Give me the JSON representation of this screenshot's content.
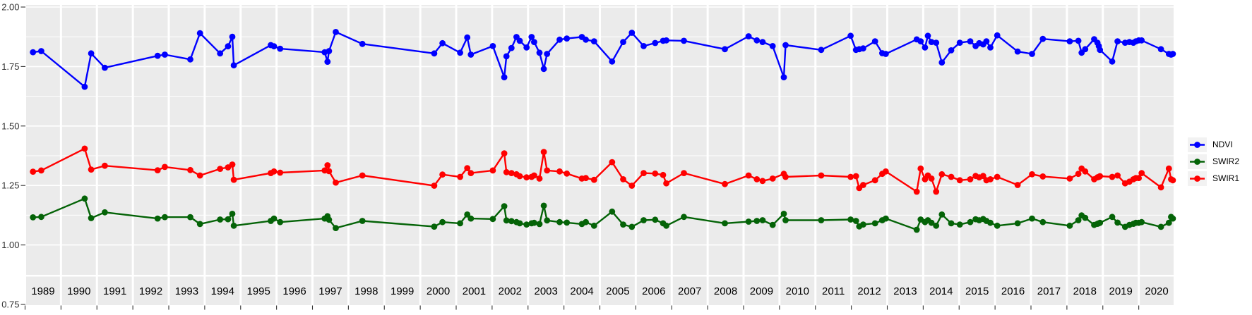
{
  "figure": {
    "panel_background": "#EBEBEB",
    "strip_background": "#EBEBEB",
    "gridline_color": "#FFFFFF",
    "axis_text_color": "#333333",
    "strip_text_color": "#000000",
    "tick_color": "#333333"
  },
  "chart_data": {
    "type": "line",
    "title": "",
    "xlabel": "",
    "ylabel": "",
    "grid": {
      "major_step": 0.25,
      "minor_step": 0.125,
      "gridlines_on": true
    },
    "y_axis": {
      "tick_labels": [
        "2.00",
        "1.75",
        "1.50",
        "1.25",
        "1.00",
        "0.75"
      ],
      "tick_values": [
        2.0,
        1.75,
        1.5,
        1.25,
        1.0,
        0.75
      ],
      "range": [
        0.875,
        2.01
      ]
    },
    "x_facet_years": [
      "1989",
      "1990",
      "1991",
      "1992",
      "1993",
      "1994",
      "1995",
      "1996",
      "1997",
      "1998",
      "1999",
      "2000",
      "2001",
      "2002",
      "2003",
      "2004",
      "2005",
      "2006",
      "2007",
      "2008",
      "2009",
      "2010",
      "2011",
      "2012",
      "2013",
      "2014",
      "2015",
      "2016",
      "2017",
      "2018",
      "2019",
      "2020"
    ],
    "legend": {
      "position": "right",
      "entries": [
        {
          "label": "NDVI",
          "color": "#0000FF"
        },
        {
          "label": "SWIR2",
          "color": "#046307"
        },
        {
          "label": "SWIR1",
          "color": "#FF0000"
        }
      ]
    },
    "x": [
      1989.19,
      1989.42,
      1990.63,
      1990.81,
      1991.19,
      1992.66,
      1992.86,
      1993.57,
      1993.84,
      1994.4,
      1994.62,
      1994.74,
      1994.78,
      1995.81,
      1995.9,
      1996.07,
      1997.31,
      1997.39,
      1997.43,
      1997.62,
      1998.36,
      2000.36,
      2000.59,
      2001.08,
      2001.28,
      2001.38,
      2001.99,
      2002.31,
      2002.37,
      2002.51,
      2002.65,
      2002.74,
      2002.93,
      2003.07,
      2003.14,
      2003.29,
      2003.41,
      2003.5,
      2003.85,
      2004.05,
      2004.47,
      2004.58,
      2004.81,
      2005.31,
      2005.62,
      2005.86,
      2006.19,
      2006.51,
      2006.73,
      2006.82,
      2007.31,
      2008.45,
      2009.11,
      2009.34,
      2009.5,
      2009.78,
      2010.09,
      2010.14,
      2011.13,
      2011.95,
      2012.1,
      2012.19,
      2012.3,
      2012.63,
      2012.83,
      2012.93,
      2013.79,
      2013.9,
      2014.02,
      2014.1,
      2014.2,
      2014.33,
      2014.49,
      2014.75,
      2014.99,
      2015.28,
      2015.43,
      2015.53,
      2015.64,
      2015.73,
      2015.84,
      2016.03,
      2016.6,
      2017.0,
      2017.3,
      2018.05,
      2018.29,
      2018.38,
      2018.48,
      2018.73,
      2018.82,
      2018.86,
      2018.89,
      2019.23,
      2019.38,
      2019.59,
      2019.71,
      2019.82,
      2019.89,
      2019.97,
      2020.05,
      2020.59,
      2020.81,
      2020.87,
      2020.92
    ],
    "series": [
      {
        "name": "NDVI",
        "color": "#0000FF",
        "values": [
          1.81,
          1.815,
          1.665,
          1.805,
          1.745,
          1.795,
          1.8,
          1.78,
          1.89,
          1.805,
          1.835,
          1.875,
          1.755,
          1.84,
          1.835,
          1.825,
          1.81,
          1.77,
          1.815,
          1.895,
          1.845,
          1.805,
          1.848,
          1.808,
          1.872,
          1.8,
          1.836,
          1.705,
          1.793,
          1.828,
          1.874,
          1.858,
          1.83,
          1.874,
          1.853,
          1.808,
          1.74,
          1.803,
          1.863,
          1.868,
          1.874,
          1.863,
          1.856,
          1.771,
          1.853,
          1.892,
          1.836,
          1.849,
          1.858,
          1.86,
          1.858,
          1.823,
          1.877,
          1.86,
          1.853,
          1.836,
          1.705,
          1.84,
          1.82,
          1.879,
          1.82,
          1.823,
          1.826,
          1.856,
          1.806,
          1.803,
          1.864,
          1.856,
          1.83,
          1.879,
          1.853,
          1.85,
          1.767,
          1.818,
          1.85,
          1.856,
          1.836,
          1.848,
          1.843,
          1.856,
          1.83,
          1.881,
          1.813,
          1.803,
          1.866,
          1.856,
          1.858,
          1.808,
          1.823,
          1.865,
          1.85,
          1.836,
          1.82,
          1.771,
          1.856,
          1.85,
          1.853,
          1.85,
          1.856,
          1.86,
          1.86,
          1.823,
          1.803,
          1.8,
          1.803
        ]
      },
      {
        "name": "SWIR2",
        "color": "#046307",
        "values": [
          1.116,
          1.118,
          1.195,
          1.113,
          1.137,
          1.111,
          1.117,
          1.117,
          1.088,
          1.107,
          1.108,
          1.131,
          1.081,
          1.101,
          1.111,
          1.096,
          1.111,
          1.121,
          1.106,
          1.071,
          1.101,
          1.077,
          1.096,
          1.091,
          1.128,
          1.111,
          1.109,
          1.163,
          1.103,
          1.1,
          1.096,
          1.091,
          1.086,
          1.091,
          1.093,
          1.088,
          1.165,
          1.103,
          1.096,
          1.094,
          1.088,
          1.096,
          1.081,
          1.14,
          1.086,
          1.076,
          1.104,
          1.106,
          1.091,
          1.081,
          1.118,
          1.091,
          1.098,
          1.101,
          1.104,
          1.084,
          1.131,
          1.104,
          1.104,
          1.107,
          1.101,
          1.078,
          1.086,
          1.091,
          1.104,
          1.111,
          1.064,
          1.107,
          1.096,
          1.104,
          1.093,
          1.081,
          1.128,
          1.091,
          1.086,
          1.096,
          1.108,
          1.104,
          1.109,
          1.101,
          1.093,
          1.081,
          1.091,
          1.111,
          1.096,
          1.081,
          1.104,
          1.124,
          1.114,
          1.084,
          1.089,
          1.091,
          1.093,
          1.118,
          1.094,
          1.076,
          1.084,
          1.089,
          1.093,
          1.093,
          1.096,
          1.076,
          1.093,
          1.118,
          1.111
        ]
      },
      {
        "name": "SWIR1",
        "color": "#FF0000",
        "values": [
          1.308,
          1.313,
          1.405,
          1.317,
          1.333,
          1.314,
          1.328,
          1.315,
          1.292,
          1.32,
          1.326,
          1.338,
          1.274,
          1.302,
          1.309,
          1.304,
          1.313,
          1.335,
          1.31,
          1.262,
          1.292,
          1.249,
          1.296,
          1.286,
          1.323,
          1.302,
          1.313,
          1.385,
          1.306,
          1.302,
          1.297,
          1.289,
          1.284,
          1.286,
          1.292,
          1.279,
          1.391,
          1.313,
          1.309,
          1.3,
          1.279,
          1.281,
          1.274,
          1.348,
          1.276,
          1.249,
          1.302,
          1.3,
          1.294,
          1.259,
          1.302,
          1.256,
          1.292,
          1.276,
          1.269,
          1.279,
          1.299,
          1.286,
          1.292,
          1.286,
          1.289,
          1.239,
          1.252,
          1.272,
          1.299,
          1.309,
          1.224,
          1.321,
          1.276,
          1.292,
          1.279,
          1.224,
          1.297,
          1.286,
          1.272,
          1.276,
          1.29,
          1.284,
          1.29,
          1.272,
          1.276,
          1.286,
          1.252,
          1.297,
          1.288,
          1.279,
          1.299,
          1.321,
          1.309,
          1.276,
          1.284,
          1.286,
          1.289,
          1.286,
          1.292,
          1.259,
          1.266,
          1.276,
          1.281,
          1.281,
          1.302,
          1.242,
          1.321,
          1.276,
          1.272
        ]
      }
    ]
  }
}
